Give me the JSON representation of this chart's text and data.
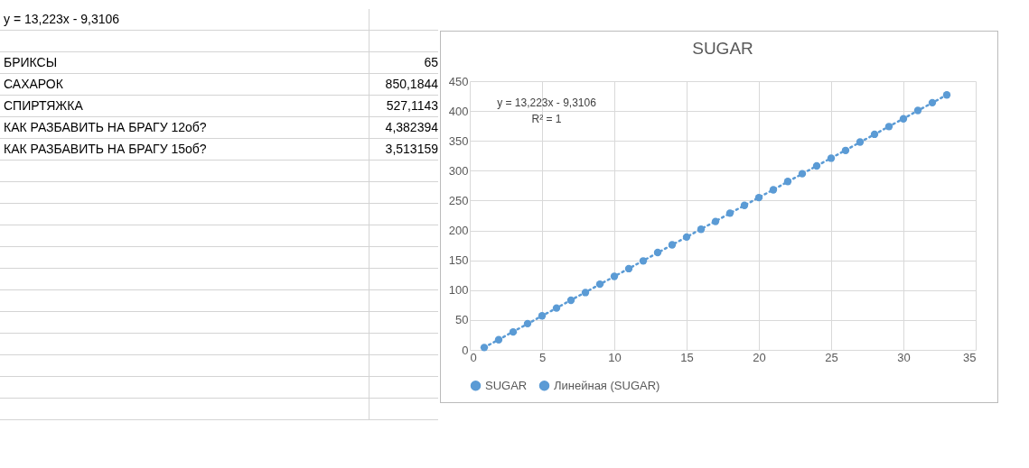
{
  "chart_data": {
    "type": "scatter",
    "title": "SUGAR",
    "x": [
      1,
      2,
      3,
      4,
      5,
      6,
      7,
      8,
      9,
      10,
      11,
      12,
      13,
      14,
      15,
      16,
      17,
      18,
      19,
      20,
      21,
      22,
      23,
      24,
      25,
      26,
      27,
      28,
      29,
      30,
      31,
      32,
      33
    ],
    "series": [
      {
        "name": "SUGAR",
        "marker": "circle",
        "color": "#5b9bd5",
        "values": [
          4,
          17,
          30,
          44,
          57,
          70,
          83,
          96,
          110,
          123,
          136,
          149,
          163,
          176,
          189,
          202,
          215,
          229,
          242,
          255,
          268,
          282,
          295,
          308,
          321,
          334,
          348,
          361,
          374,
          387,
          401,
          414,
          427
        ]
      },
      {
        "name": "Линейная (SUGAR)",
        "type": "line",
        "color": "#5b9bd5",
        "line_style": "dotted",
        "x": [
          1,
          33
        ],
        "values": [
          4,
          427
        ]
      }
    ],
    "xlim": [
      0,
      35
    ],
    "xticks": [
      0,
      5,
      10,
      15,
      20,
      25,
      30,
      35
    ],
    "ylim": [
      0,
      450
    ],
    "yticks": [
      0,
      50,
      100,
      150,
      200,
      250,
      300,
      350,
      400,
      450
    ],
    "grid": true,
    "legend": "bottom",
    "annotations": [
      "y = 13,223x - 9,3106",
      "R² = 1",
      "y = 13,223x - 9,3106",
      "БРИКСЫ",
      "65",
      "САХАРОК",
      "850,1844",
      "СПИРТЯЖКА",
      "527,1143",
      "КАК РАЗБАВИТЬ НА БРАГУ 12об?",
      "4,382394",
      "КАК РАЗБАВИТЬ НА БРАГУ 15об?",
      "3,513159"
    ]
  }
}
